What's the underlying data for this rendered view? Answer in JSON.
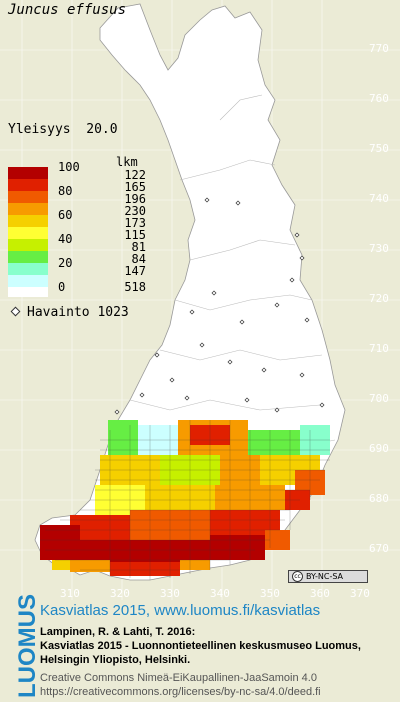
{
  "map": {
    "species": "Juncus effusus",
    "frequency_label": "Yleisyys",
    "frequency_value": "20.0",
    "legend": {
      "unit": "lkm",
      "levels": [
        {
          "label": "100",
          "count": "122",
          "color": "#b30000"
        },
        {
          "label": "",
          "count": "165",
          "color": "#e02000"
        },
        {
          "label": "80",
          "count": "196",
          "color": "#f05a00"
        },
        {
          "label": "",
          "count": "230",
          "color": "#f79b00"
        },
        {
          "label": "60",
          "count": "173",
          "color": "#f5d000"
        },
        {
          "label": "",
          "count": "115",
          "color": "#ffff33"
        },
        {
          "label": "40",
          "count": "81",
          "color": "#c6f000"
        },
        {
          "label": "",
          "count": "84",
          "color": "#66ee44"
        },
        {
          "label": "20",
          "count": "147",
          "color": "#88ffcc"
        },
        {
          "label": "",
          "count": "",
          "color": "#ccffff"
        },
        {
          "label": "0",
          "count": "518",
          "color": "#ffffff"
        }
      ]
    },
    "observation": {
      "label": "Havainto",
      "count": "1023"
    },
    "y_ticks": [
      "770",
      "760",
      "750",
      "740",
      "730",
      "720",
      "710",
      "700",
      "690",
      "680",
      "670"
    ],
    "x_ticks": [
      "310",
      "320",
      "330",
      "340",
      "350",
      "360",
      "370"
    ],
    "license_badge": "BY-NC-SA"
  },
  "footer": {
    "logo": "LUOMUS",
    "site": "Kasviatlas 2015, www.luomus.fi/kasviatlas",
    "citation_1": "Lampinen, R. & Lahti, T. 2016:",
    "citation_2": "Kasviatlas 2015 - Luonnontieteellinen keskusmuseo Luomus,",
    "citation_3": "Helsingin Yliopisto, Helsinki.",
    "license_1": "Creative Commons Nimeä-EiKaupallinen-JaaSamoin 4.0",
    "license_2": "https://creativecommons.org/licenses/by-nc-sa/4.0/deed.fi"
  },
  "colors": {
    "background": "#ebebd6",
    "land": "#ffffff",
    "brand": "#1e86c5"
  }
}
